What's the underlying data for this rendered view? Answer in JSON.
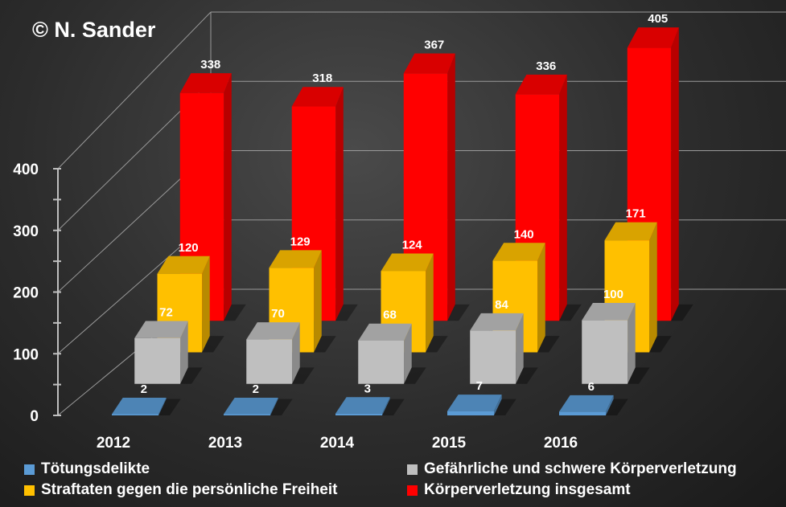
{
  "copyright": "© N. Sander",
  "chart_data": {
    "type": "bar",
    "style": "3d-clustered",
    "categories": [
      "2012",
      "2013",
      "2014",
      "2015",
      "2016"
    ],
    "series": [
      {
        "name": "Tötungsdelikte",
        "color": "#5b9bd5",
        "values": [
          2,
          2,
          3,
          7,
          6
        ]
      },
      {
        "name": "Gefährliche und schwere Körperverletzung",
        "color": "#bfbfbf",
        "values": [
          72,
          70,
          68,
          84,
          100
        ]
      },
      {
        "name": "Straftaten gegen die persönliche Freiheit",
        "color": "#ffc000",
        "values": [
          120,
          129,
          124,
          140,
          171
        ]
      },
      {
        "name": "Körperverletzung insgesamt",
        "color": "#ff0000",
        "values": [
          338,
          318,
          367,
          336,
          405
        ]
      }
    ],
    "y_ticks": [
      "0",
      "100",
      "200",
      "300",
      "400"
    ],
    "ylim": [
      0,
      400
    ],
    "grid": true,
    "legend_position": "bottom"
  }
}
